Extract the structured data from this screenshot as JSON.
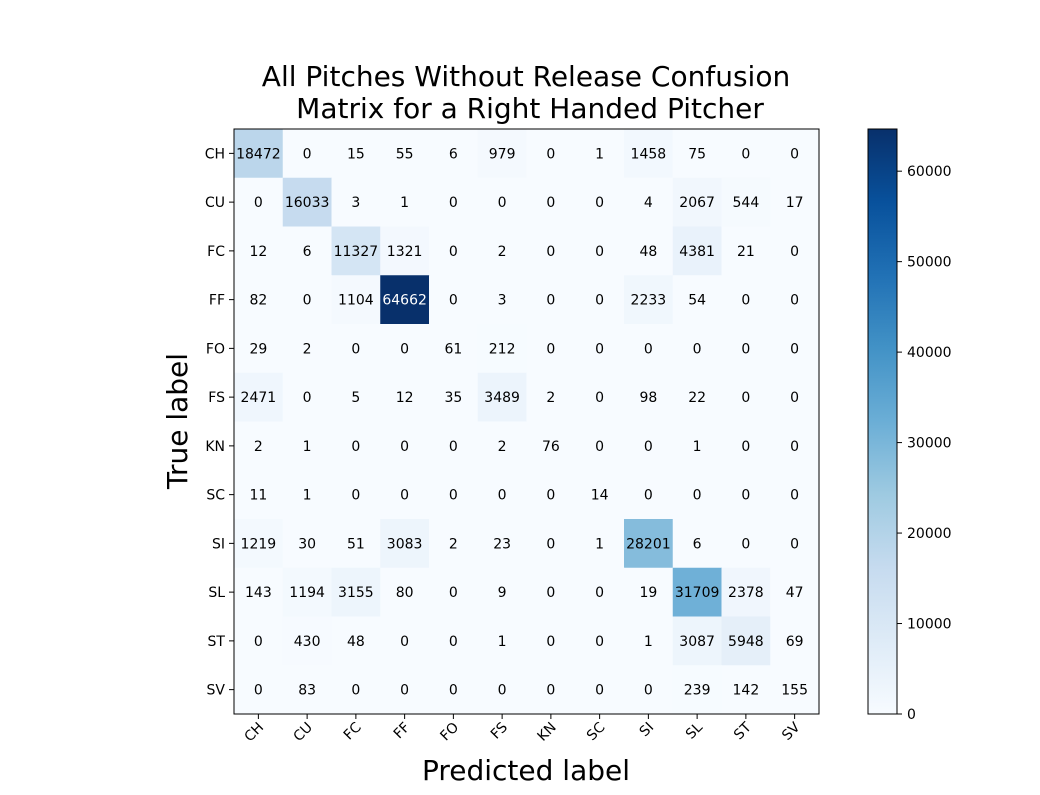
{
  "chart_data": {
    "type": "heatmap",
    "title_lines": [
      "All Pitches Without Release Confusion",
      "Matrix for a Right Handed Pitcher"
    ],
    "xlabel": "Predicted label",
    "ylabel": "True label",
    "x_categories": [
      "CH",
      "CU",
      "FC",
      "FF",
      "FO",
      "FS",
      "KN",
      "SC",
      "SI",
      "SL",
      "ST",
      "SV"
    ],
    "y_categories": [
      "CH",
      "CU",
      "FC",
      "FF",
      "FO",
      "FS",
      "KN",
      "SC",
      "SI",
      "SL",
      "ST",
      "SV"
    ],
    "matrix": [
      [
        18472,
        0,
        15,
        55,
        6,
        979,
        0,
        1,
        1458,
        75,
        0,
        0
      ],
      [
        0,
        16033,
        3,
        1,
        0,
        0,
        0,
        0,
        4,
        2067,
        544,
        17
      ],
      [
        12,
        6,
        11327,
        1321,
        0,
        2,
        0,
        0,
        48,
        4381,
        21,
        0
      ],
      [
        82,
        0,
        1104,
        64662,
        0,
        3,
        0,
        0,
        2233,
        54,
        0,
        0
      ],
      [
        29,
        2,
        0,
        0,
        61,
        212,
        0,
        0,
        0,
        0,
        0,
        0
      ],
      [
        2471,
        0,
        5,
        12,
        35,
        3489,
        2,
        0,
        98,
        22,
        0,
        0
      ],
      [
        2,
        1,
        0,
        0,
        0,
        2,
        76,
        0,
        0,
        1,
        0,
        0
      ],
      [
        11,
        1,
        0,
        0,
        0,
        0,
        0,
        14,
        0,
        0,
        0,
        0
      ],
      [
        1219,
        30,
        51,
        3083,
        2,
        23,
        0,
        1,
        28201,
        6,
        0,
        0
      ],
      [
        143,
        1194,
        3155,
        80,
        0,
        9,
        0,
        0,
        19,
        31709,
        2378,
        47
      ],
      [
        0,
        430,
        48,
        0,
        0,
        1,
        0,
        0,
        1,
        3087,
        5948,
        69
      ],
      [
        0,
        83,
        0,
        0,
        0,
        0,
        0,
        0,
        0,
        239,
        142,
        155
      ]
    ],
    "colormap": "Blues",
    "colormap_stops": [
      "#f7fbff",
      "#deebf7",
      "#c6dbef",
      "#9ecae1",
      "#6baed6",
      "#4292c6",
      "#2171b5",
      "#08519c",
      "#08306b"
    ],
    "color_range": [
      0,
      64662
    ],
    "colorbar_ticks": [
      0,
      10000,
      20000,
      30000,
      40000,
      50000,
      60000
    ],
    "text_threshold": 32331,
    "grid": false
  }
}
